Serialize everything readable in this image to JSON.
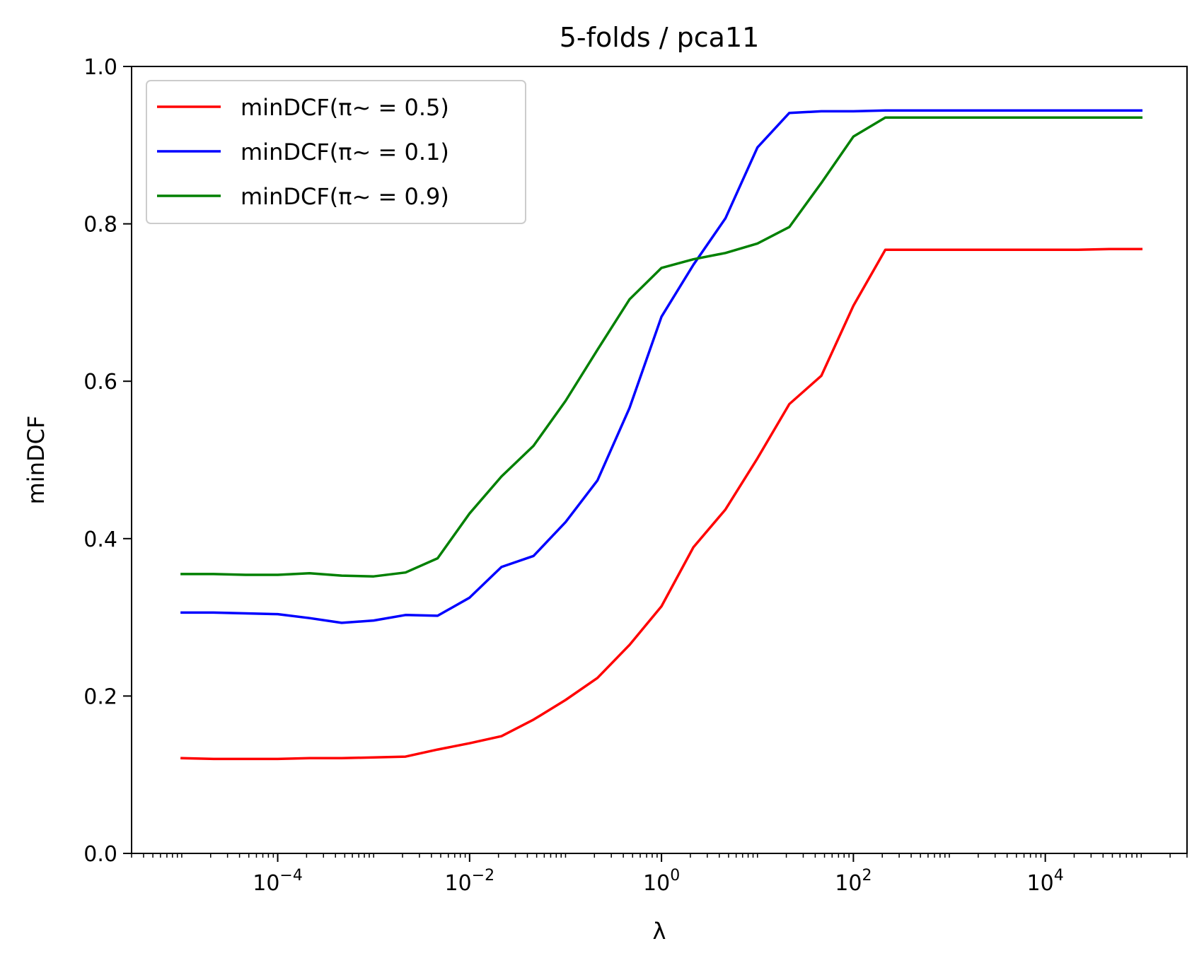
{
  "chart_data": {
    "type": "line",
    "title": "5-folds / pca11",
    "xlabel": "λ",
    "ylabel": "minDCF",
    "xscale": "log",
    "xlim": [
      3e-06,
      300000
    ],
    "ylim": [
      0.0,
      1.0
    ],
    "grid": false,
    "legend_position": "top-left",
    "x_ticks": [
      {
        "value": 0.0001,
        "base": "10",
        "exp": "−4"
      },
      {
        "value": 0.01,
        "base": "10",
        "exp": "−2"
      },
      {
        "value": 1,
        "base": "10",
        "exp": "0"
      },
      {
        "value": 100,
        "base": "10",
        "exp": "2"
      },
      {
        "value": 10000,
        "base": "10",
        "exp": "4"
      }
    ],
    "y_ticks": [
      {
        "value": 0.0,
        "label": "0.0"
      },
      {
        "value": 0.2,
        "label": "0.2"
      },
      {
        "value": 0.4,
        "label": "0.4"
      },
      {
        "value": 0.6,
        "label": "0.6"
      },
      {
        "value": 0.8,
        "label": "0.8"
      },
      {
        "value": 1.0,
        "label": "1.0"
      }
    ],
    "x": [
      1e-05,
      2.15e-05,
      4.64e-05,
      0.0001,
      0.000215,
      0.000464,
      0.001,
      0.00215,
      0.00464,
      0.01,
      0.0215,
      0.0464,
      0.1,
      0.215,
      0.464,
      1,
      2.15,
      4.64,
      10,
      21.5,
      46.4,
      100,
      215,
      464,
      1000,
      2150,
      4640,
      10000,
      21500,
      46400,
      100000
    ],
    "series": [
      {
        "name": "minDCF(π~ = 0.5)",
        "color": "#ff0000",
        "values": [
          0.121,
          0.12,
          0.12,
          0.12,
          0.121,
          0.121,
          0.122,
          0.123,
          0.132,
          0.14,
          0.149,
          0.17,
          0.195,
          0.223,
          0.265,
          0.314,
          0.389,
          0.437,
          0.502,
          0.571,
          0.607,
          0.696,
          0.767,
          0.767,
          0.767,
          0.767,
          0.767,
          0.767,
          0.767,
          0.768,
          0.768
        ]
      },
      {
        "name": "minDCF(π~ = 0.1)",
        "color": "#0000ff",
        "values": [
          0.306,
          0.306,
          0.305,
          0.304,
          0.299,
          0.293,
          0.296,
          0.303,
          0.302,
          0.325,
          0.364,
          0.378,
          0.421,
          0.474,
          0.566,
          0.682,
          0.748,
          0.807,
          0.897,
          0.941,
          0.943,
          0.943,
          0.944,
          0.944,
          0.944,
          0.944,
          0.944,
          0.944,
          0.944,
          0.944,
          0.944
        ]
      },
      {
        "name": "minDCF(π~ = 0.9)",
        "color": "#008000",
        "values": [
          0.355,
          0.355,
          0.354,
          0.354,
          0.356,
          0.353,
          0.352,
          0.357,
          0.375,
          0.432,
          0.479,
          0.518,
          0.575,
          0.64,
          0.704,
          0.744,
          0.755,
          0.763,
          0.775,
          0.796,
          0.852,
          0.911,
          0.935,
          0.935,
          0.935,
          0.935,
          0.935,
          0.935,
          0.935,
          0.935,
          0.935
        ]
      }
    ]
  }
}
